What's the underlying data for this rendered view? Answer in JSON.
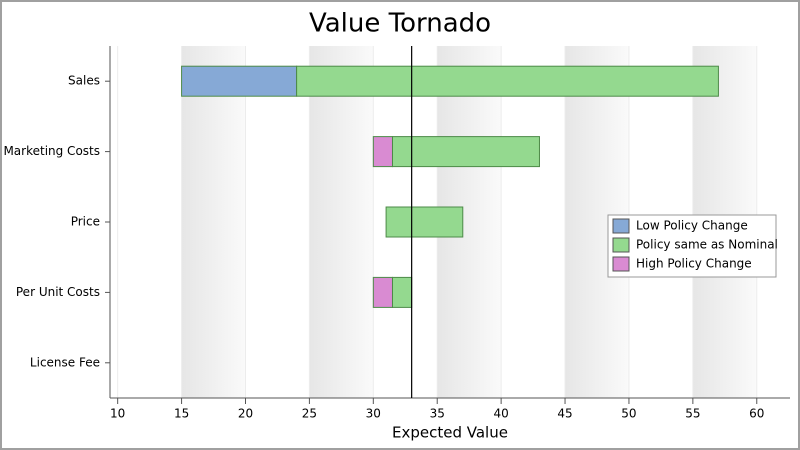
{
  "chart_data": {
    "type": "floating-bar",
    "title": "Value Tornado",
    "x_label": "Expected Value",
    "categories": [
      "Sales",
      "Marketing Costs",
      "Price",
      "Per Unit Costs",
      "License Fee"
    ],
    "series": [
      {
        "name": "Low Policy Change",
        "color": "#86a9d6",
        "values": [
          [
            15,
            24
          ],
          null,
          null,
          null,
          null
        ]
      },
      {
        "name": "Policy same as Nominal",
        "color": "#94d98f",
        "values": [
          [
            24,
            57
          ],
          [
            31.5,
            43
          ],
          [
            31,
            37
          ],
          [
            31.5,
            33
          ],
          null
        ]
      },
      {
        "name": "High Policy Change",
        "color": "#d98bd2",
        "values": [
          null,
          [
            30,
            31.5
          ],
          null,
          [
            30,
            31.5
          ],
          null
        ]
      }
    ],
    "reference_line": 33,
    "xlim": [
      9.4,
      62.6
    ],
    "xticks": [
      10,
      15,
      20,
      25,
      30,
      35,
      40,
      45,
      50,
      55,
      60
    ],
    "legend": "right"
  }
}
